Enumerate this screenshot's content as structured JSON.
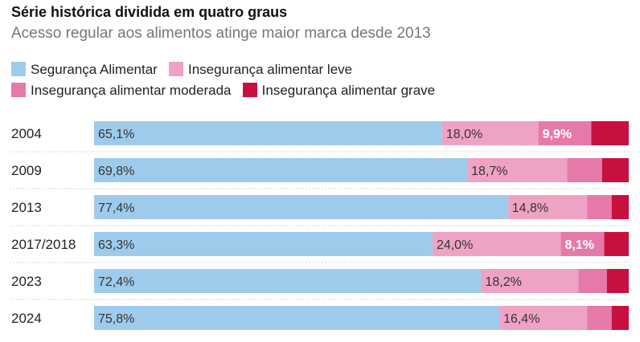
{
  "chart_data": {
    "type": "bar",
    "orientation": "horizontal",
    "stacked": true,
    "percent_stacked": true,
    "title": "Série histórica dividida em quatro graus",
    "subtitle": "Acesso regular aos alimentos atinge maior marca desde 2013",
    "categories": [
      "2004",
      "2009",
      "2013",
      "2017/2018",
      "2023",
      "2024"
    ],
    "series": [
      {
        "name": "Segurança Alimentar",
        "color": "#9ecbec",
        "label_color": "#333333",
        "values": [
          65.1,
          69.8,
          77.4,
          63.3,
          72.4,
          75.8
        ],
        "labels": [
          "65,1%",
          "69,8%",
          "77,4%",
          "63,3%",
          "72,4%",
          "75,8%"
        ]
      },
      {
        "name": "Insegurança alimentar leve",
        "color": "#efa3c4",
        "label_color": "#333333",
        "values": [
          18.0,
          18.7,
          14.8,
          24.0,
          18.2,
          16.4
        ],
        "labels": [
          "18,0%",
          "18,7%",
          "14,8%",
          "24,0%",
          "18,2%",
          "16,4%"
        ]
      },
      {
        "name": "Insegurança alimentar moderada",
        "color": "#e57aaa",
        "label_color": "#ffffff",
        "values": [
          9.9,
          6.5,
          4.6,
          8.1,
          5.3,
          4.6
        ],
        "labels": [
          "9,9%",
          null,
          null,
          "8,1%",
          null,
          null
        ]
      },
      {
        "name": "Insegurança alimentar grave",
        "color": "#c8103f",
        "label_color": "#ffffff",
        "values": [
          7.0,
          5.0,
          3.2,
          4.6,
          4.1,
          3.2
        ],
        "labels": [
          null,
          null,
          null,
          null,
          null,
          null
        ]
      }
    ],
    "xlim": [
      0,
      100
    ],
    "grid": false,
    "legend": "top"
  }
}
